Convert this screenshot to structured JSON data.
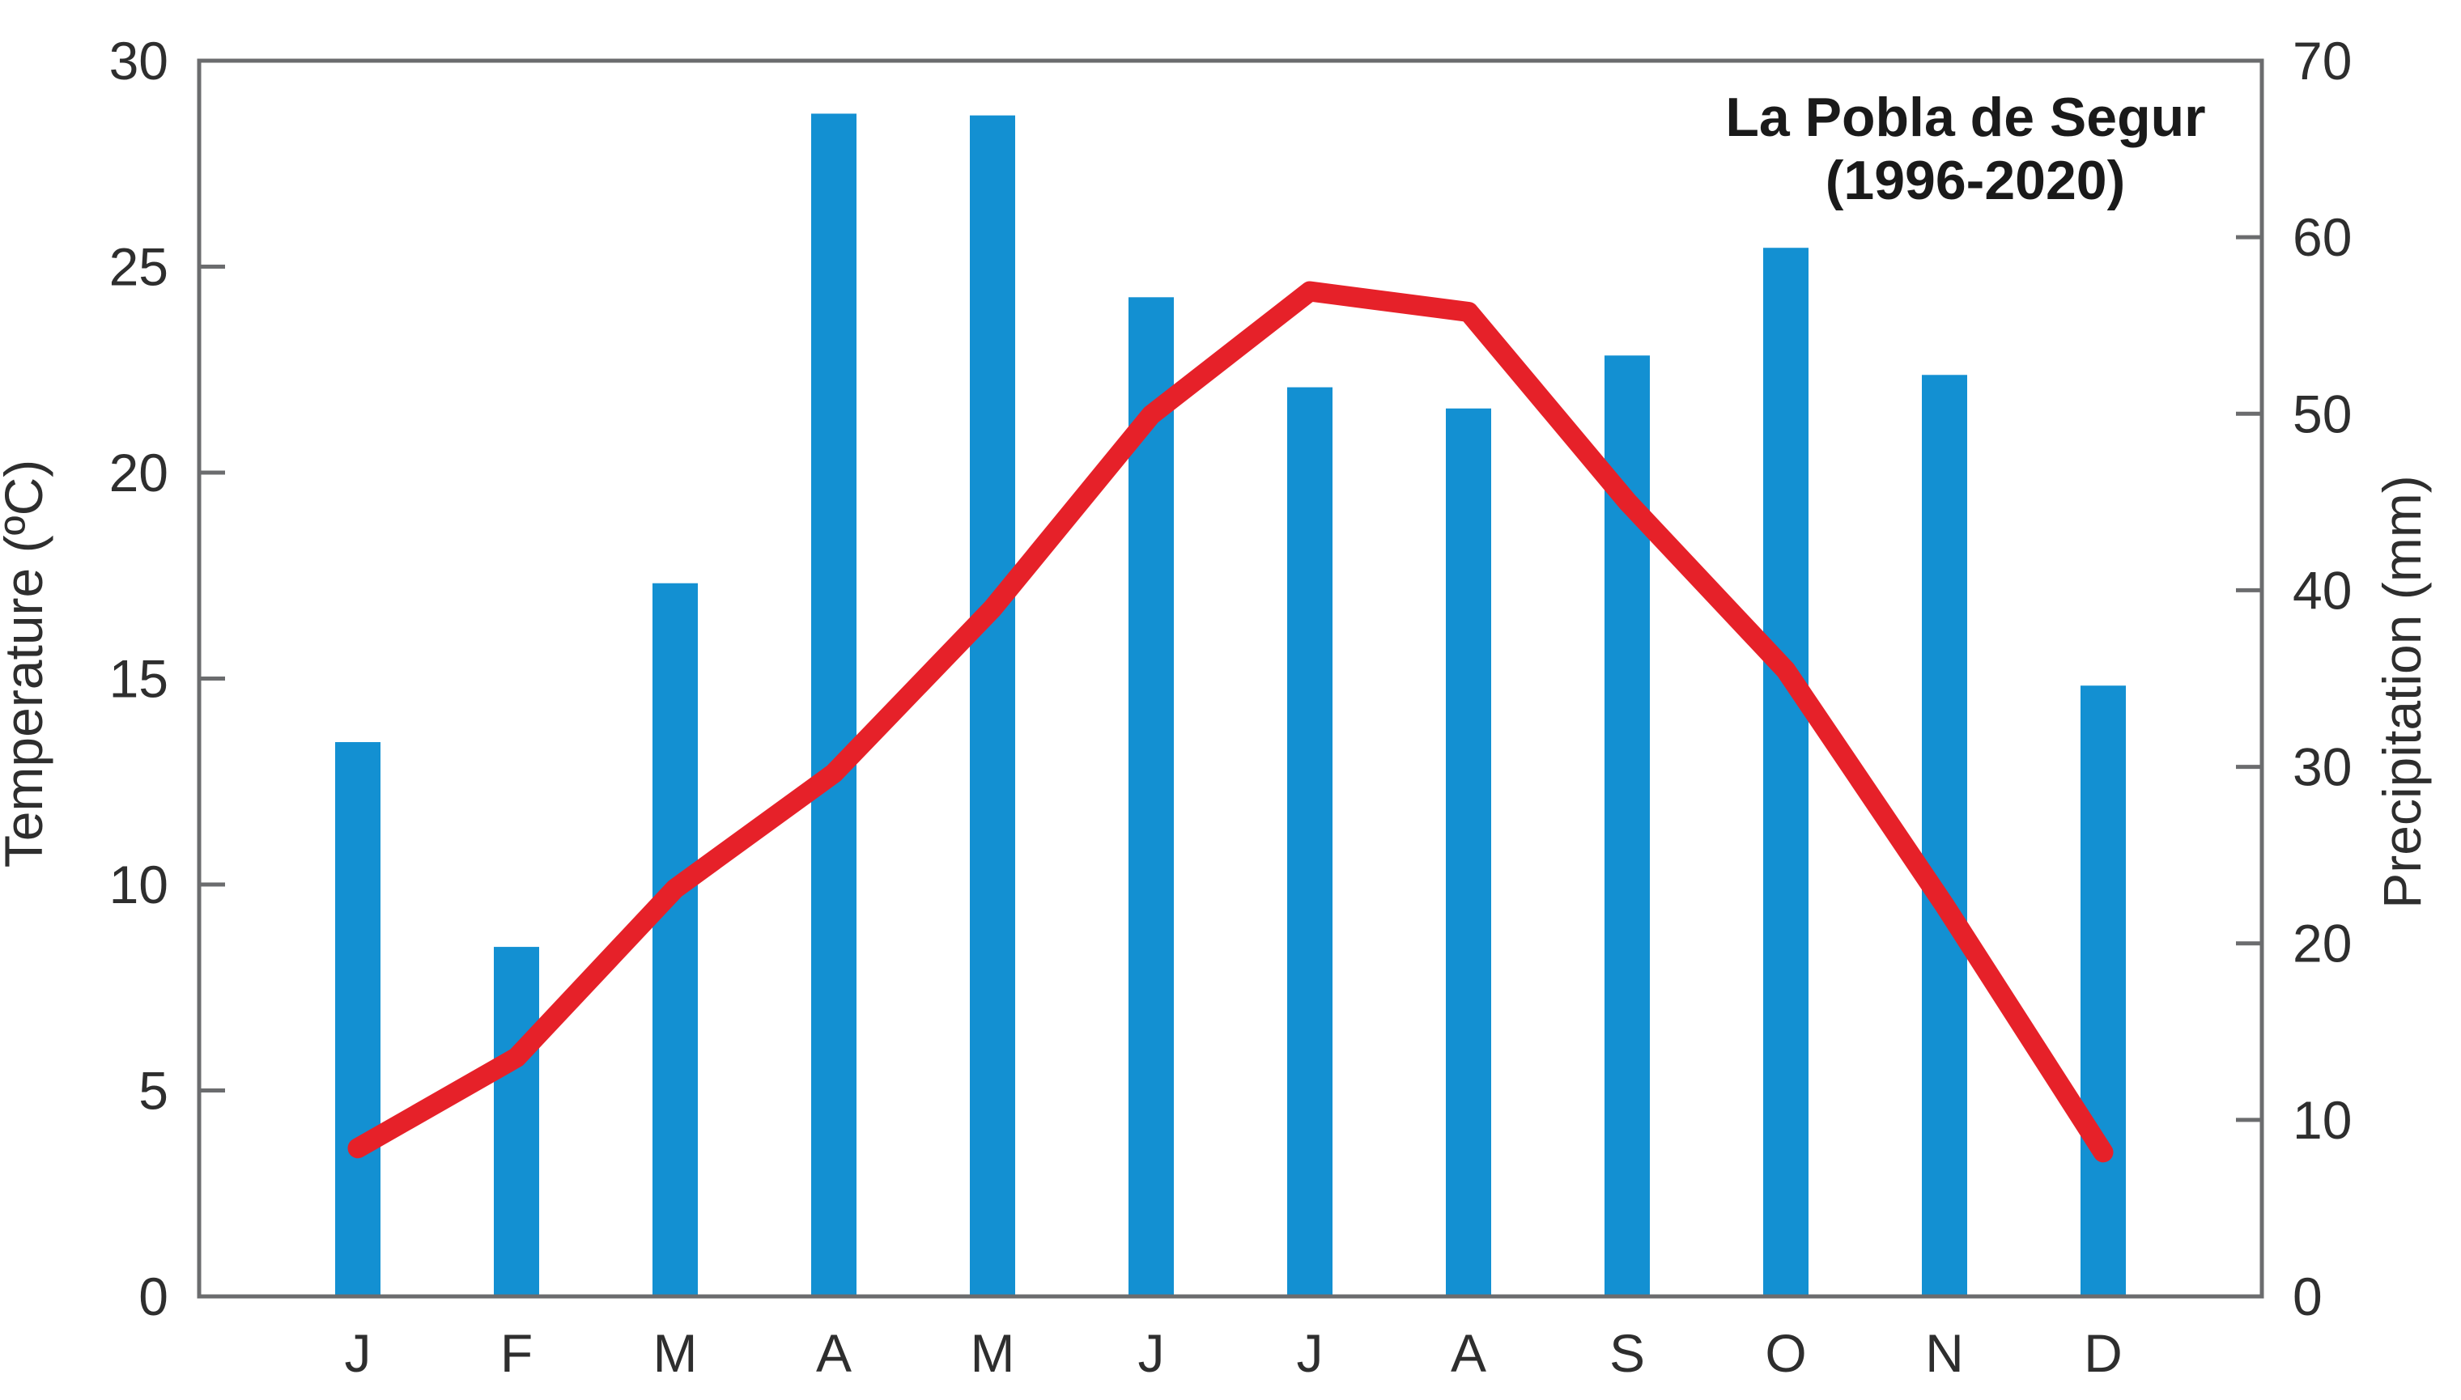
{
  "page": {
    "background": "#ffffff"
  },
  "chart_data": {
    "type": "bar+line",
    "title": "La Pobla de Segur",
    "subtitle": "(1996-2020)",
    "categories": [
      "J",
      "F",
      "M",
      "A",
      "M",
      "J",
      "J",
      "A",
      "S",
      "O",
      "N",
      "D"
    ],
    "series": [
      {
        "name": "Precipitation",
        "type": "bar",
        "axis": "right",
        "unit": "mm",
        "color": "#1390d2",
        "values": [
          31.4,
          19.8,
          40.4,
          67.0,
          66.9,
          56.6,
          51.5,
          50.3,
          53.3,
          59.4,
          52.2,
          34.6
        ]
      },
      {
        "name": "Temperature",
        "type": "line",
        "axis": "left",
        "unit": "ºC",
        "color": "#e62129",
        "values": [
          3.6,
          5.8,
          9.9,
          12.7,
          16.7,
          21.4,
          24.4,
          23.9,
          19.3,
          15.2,
          9.5,
          3.5
        ]
      }
    ],
    "left_axis": {
      "title": "Temperature (ºC)",
      "min": 0,
      "max": 30,
      "ticks": [
        0,
        5,
        10,
        15,
        20,
        25,
        30
      ]
    },
    "right_axis": {
      "title": "Precipitation (mm)",
      "min": 0,
      "max": 70,
      "ticks": [
        0,
        10,
        20,
        30,
        40,
        50,
        60,
        70
      ]
    },
    "x_axis": {
      "labels": [
        "J",
        "F",
        "M",
        "A",
        "M",
        "J",
        "J",
        "A",
        "S",
        "O",
        "N",
        "D"
      ]
    },
    "frame_color": "#6b6c6e",
    "text_color": "#2e2e2e",
    "grid": false,
    "legend": "none"
  }
}
